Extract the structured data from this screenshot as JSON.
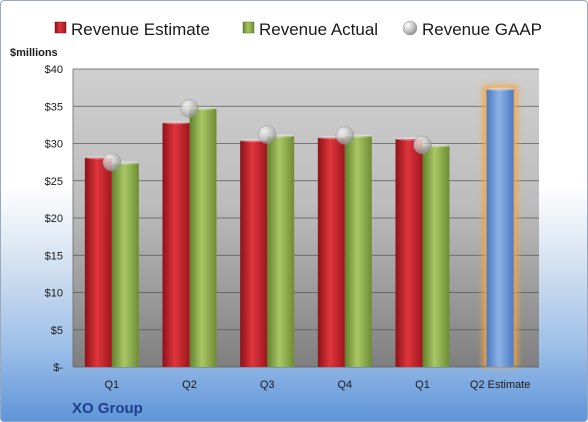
{
  "chart_data": {
    "type": "bar",
    "title": "",
    "ylabel": "$millions",
    "xlabel": "",
    "categories": [
      "Q1",
      "Q2",
      "Q3",
      "Q4",
      "Q1",
      "Q2 Estimate"
    ],
    "series": [
      {
        "name": "Revenue Estimate",
        "kind": "bar",
        "color": "#c0202a",
        "values": [
          28.1,
          32.8,
          30.4,
          30.8,
          30.6,
          37.3
        ]
      },
      {
        "name": "Revenue Actual",
        "kind": "bar",
        "color": "#8fb04a",
        "values": [
          27.4,
          34.7,
          31.0,
          31.0,
          29.7,
          null
        ]
      },
      {
        "name": "Revenue GAAP",
        "kind": "marker",
        "color": "#b8b8b8",
        "values": [
          27.5,
          34.7,
          31.2,
          31.1,
          29.8,
          null
        ]
      }
    ],
    "highlight": {
      "category_index": 5,
      "color": "#6f9bd8",
      "glow": "#f4a640"
    },
    "ylim": [
      0,
      40
    ],
    "yticks": [
      0,
      5,
      10,
      15,
      20,
      25,
      30,
      35,
      40
    ],
    "ytick_labels": [
      "$-",
      "$5",
      "$10",
      "$15",
      "$20",
      "$25",
      "$30",
      "$35",
      "$40"
    ],
    "grid": true,
    "legend": "top"
  },
  "footer": {
    "company": "XO Group"
  }
}
